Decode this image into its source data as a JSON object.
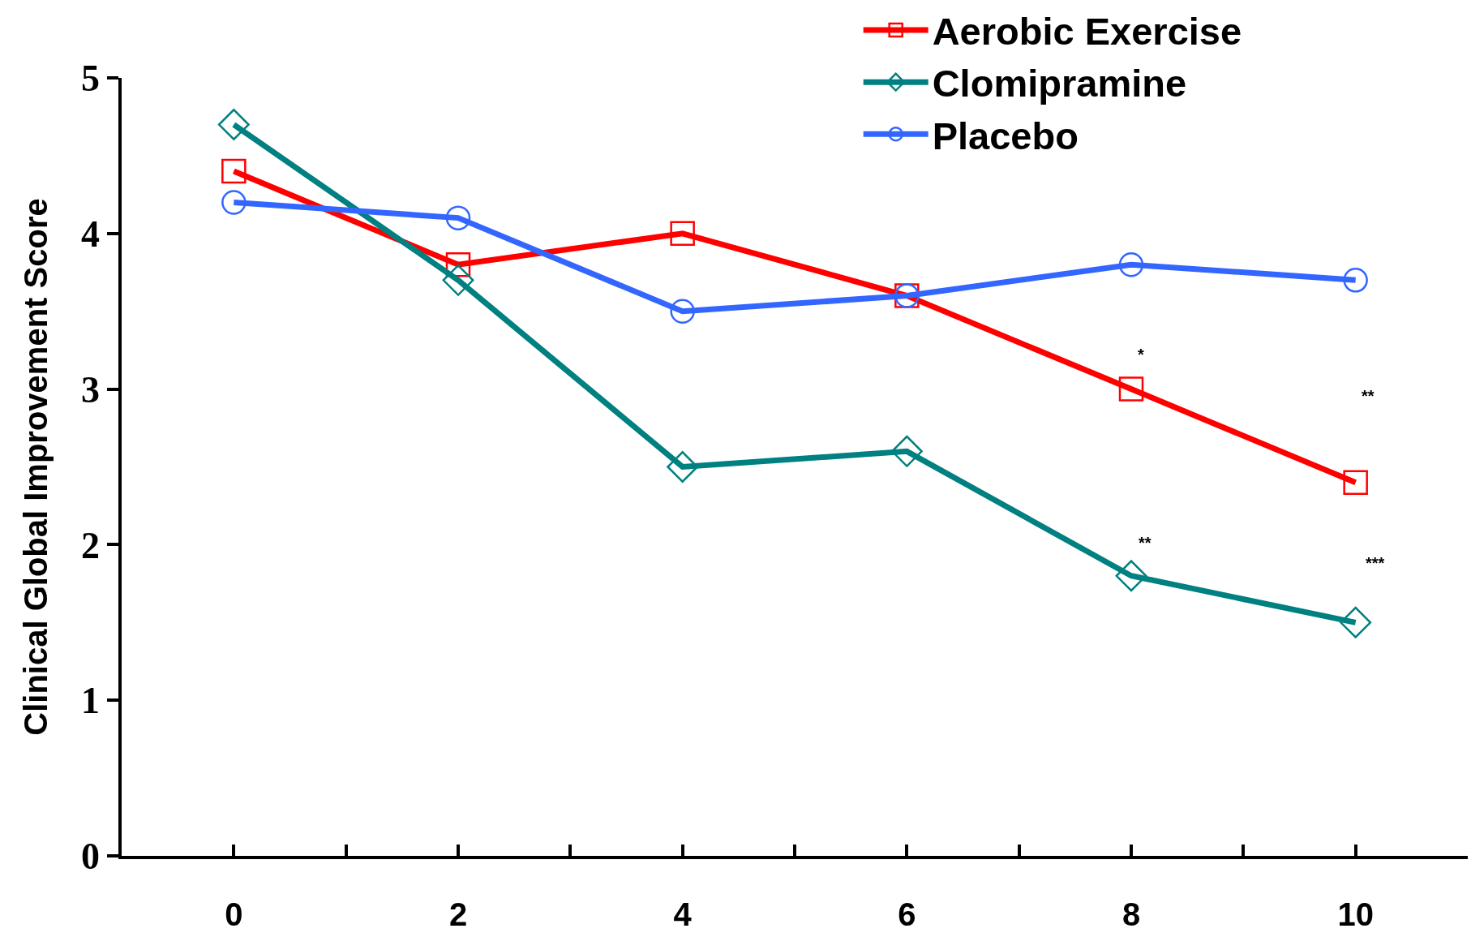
{
  "chart_data": {
    "type": "line",
    "ylabel": "Clinical Global Improvement Score",
    "x": [
      0,
      2,
      4,
      6,
      8,
      10
    ],
    "series": [
      {
        "name": "Aerobic Exercise",
        "color": "#ff0000",
        "marker": "square",
        "values": [
          4.4,
          3.8,
          4.0,
          3.6,
          3.0,
          2.4
        ]
      },
      {
        "name": "Clomipramine",
        "color": "#008080",
        "marker": "diamond",
        "values": [
          4.7,
          3.7,
          2.5,
          2.6,
          1.8,
          1.5
        ]
      },
      {
        "name": "Placebo",
        "color": "#3366ff",
        "marker": "circle",
        "values": [
          4.2,
          4.1,
          3.5,
          3.6,
          3.8,
          3.7
        ]
      }
    ],
    "xlim": [
      -1,
      11
    ],
    "xticks": [
      0,
      {
        "value": 1,
        "label": null
      },
      2,
      {
        "value": 3,
        "label": null
      },
      4,
      {
        "value": 5,
        "label": null
      },
      6,
      {
        "value": 7,
        "label": null
      },
      8,
      {
        "value": 9,
        "label": null
      },
      10
    ],
    "ylim": [
      0,
      5
    ],
    "yticks": [
      0,
      1,
      2,
      3,
      4,
      5
    ],
    "annotations": [
      "*",
      "**",
      "**",
      "***"
    ],
    "grid": false,
    "legend": "top right",
    "line_style": "solid"
  }
}
